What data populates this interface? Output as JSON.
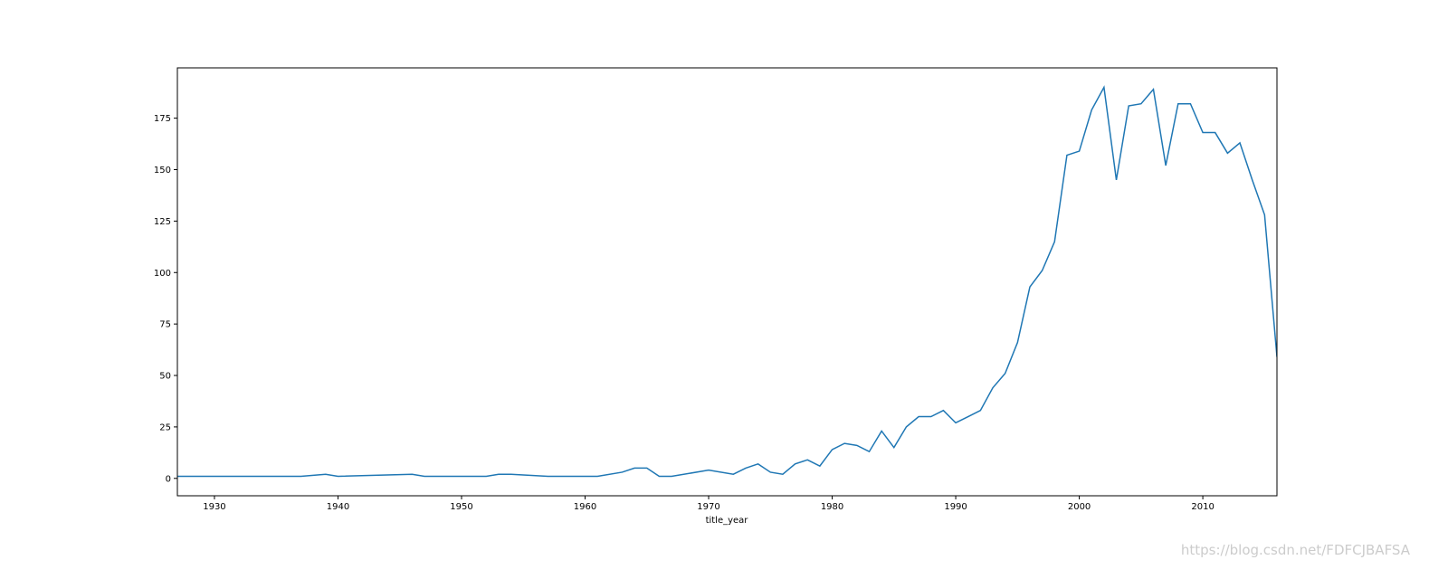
{
  "chart_data": {
    "type": "line",
    "x_label": "title_year",
    "x": [
      1927,
      1937,
      1939,
      1940,
      1946,
      1947,
      1952,
      1953,
      1954,
      1957,
      1961,
      1963,
      1964,
      1965,
      1966,
      1967,
      1970,
      1972,
      1973,
      1974,
      1975,
      1976,
      1977,
      1978,
      1979,
      1980,
      1981,
      1982,
      1983,
      1984,
      1985,
      1986,
      1987,
      1988,
      1989,
      1990,
      1991,
      1992,
      1993,
      1994,
      1995,
      1996,
      1997,
      1998,
      1999,
      2000,
      2001,
      2002,
      2003,
      2004,
      2005,
      2006,
      2007,
      2008,
      2009,
      2010,
      2011,
      2012,
      2013,
      2014,
      2015,
      2016
    ],
    "series": [
      {
        "color": "#1f77b4",
        "values": [
          1,
          1,
          2,
          1,
          2,
          1,
          1,
          2,
          2,
          1,
          1,
          3,
          5,
          5,
          1,
          1,
          4,
          2,
          5,
          7,
          3,
          2,
          7,
          9,
          6,
          14,
          17,
          16,
          13,
          23,
          15,
          25,
          30,
          30,
          33,
          27,
          30,
          33,
          44,
          51,
          66,
          93,
          101,
          115,
          157,
          159,
          179,
          190,
          145,
          181,
          182,
          189,
          152,
          182,
          182,
          168,
          168,
          158,
          163,
          145,
          128,
          59
        ]
      }
    ],
    "xlim": [
      1927,
      2016
    ],
    "xticks": [
      1930,
      1940,
      1950,
      1960,
      1970,
      1980,
      1990,
      2000,
      2010
    ],
    "ylim": [
      -8.45,
      199.45
    ],
    "yticks": [
      0,
      25,
      50,
      75,
      100,
      125,
      150,
      175
    ],
    "watermark": "https://blog.csdn.net/FDFCJBAFSA"
  }
}
